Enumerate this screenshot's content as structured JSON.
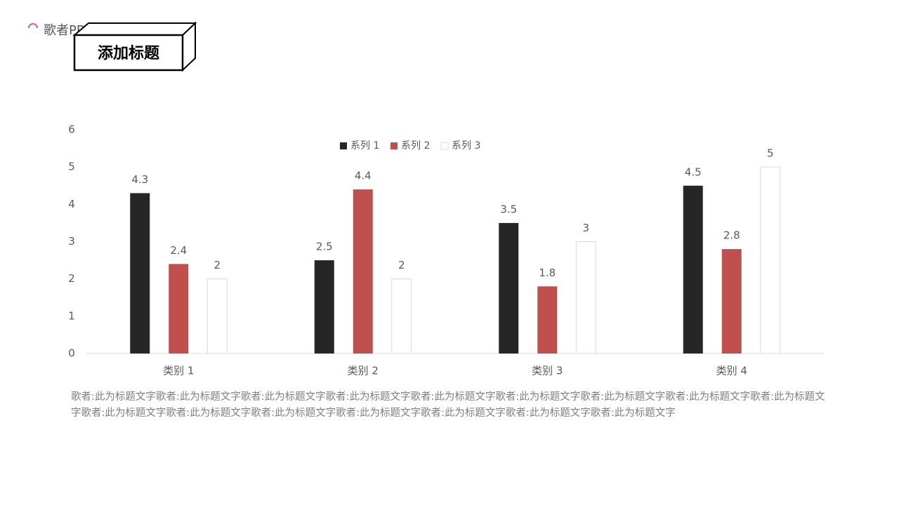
{
  "logo": {
    "text": "歌者PPT",
    "icon": "music-microphone-icon"
  },
  "title": "添加标题",
  "description": "歌者:此为标题文字歌者:此为标题文字歌者:此为标题文字歌者:此为标题文字歌者:此为标题文字歌者:此为标题文字歌者:此为标题文字歌者:此为标题文字歌者:此为标题文字歌者:此为标题文字歌者:此为标题文字歌者:此为标题文字歌者:此为标题文字歌者:此为标题文字歌者:此为标题文字歌者:此为标题文字",
  "colors": {
    "accent": "#c0504d",
    "dark": "#262626",
    "axis": "#d9d9d9",
    "text": "#595959"
  },
  "chart_data": {
    "type": "bar",
    "categories": [
      "类别 1",
      "类别 2",
      "类别 3",
      "类别 4"
    ],
    "series": [
      {
        "name": "系列 1",
        "values": [
          4.3,
          2.5,
          3.5,
          4.5
        ],
        "color": "#262626"
      },
      {
        "name": "系列 2",
        "values": [
          2.4,
          4.4,
          1.8,
          2.8
        ],
        "color": "#c0504d"
      },
      {
        "name": "系列 3",
        "values": [
          2,
          2,
          3,
          5
        ],
        "color": "#ffffff"
      }
    ],
    "ylim": [
      0,
      6
    ],
    "yticks": [
      0,
      1,
      2,
      3,
      4,
      5,
      6
    ],
    "data_labels": true,
    "grid": false,
    "legend": "top-center"
  }
}
